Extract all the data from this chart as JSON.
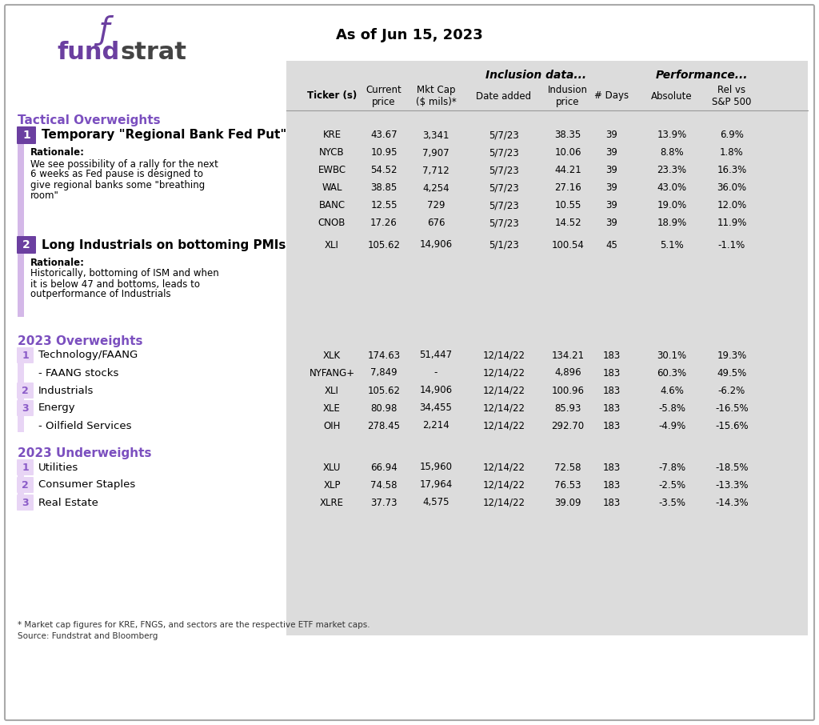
{
  "title": "As of Jun 15, 2023",
  "header_cols": [
    "Ticker (s)",
    "Current\nprice",
    "Mkt Cap\n($ mils)*",
    "Date added",
    "Indusion\nprice",
    "# Days",
    "Absolute",
    "Rel vs\nS&P 500"
  ],
  "group_headers": [
    "Inclusion data...",
    "Performance..."
  ],
  "sections": [
    {
      "type": "tactical_overweights",
      "label": "Tactical Overweights",
      "items": [
        {
          "num": "1",
          "title": "Temporary \"Regional Bank Fed Put\"",
          "rationale": "Rationale:\nWe see possibility of a rally for the next\n6 weeks as Fed pause is designed to\ngive regional banks some \"breathing\nroom\"",
          "rows": [
            [
              "KRE",
              "43.67",
              "3,341",
              "5/7/23",
              "38.35",
              "39",
              "13.9%",
              "6.9%"
            ],
            [
              "NYCB",
              "10.95",
              "7,907",
              "5/7/23",
              "10.06",
              "39",
              "8.8%",
              "1.8%"
            ],
            [
              "EWBC",
              "54.52",
              "7,712",
              "5/7/23",
              "44.21",
              "39",
              "23.3%",
              "16.3%"
            ],
            [
              "WAL",
              "38.85",
              "4,254",
              "5/7/23",
              "27.16",
              "39",
              "43.0%",
              "36.0%"
            ],
            [
              "BANC",
              "12.55",
              "729",
              "5/7/23",
              "10.55",
              "39",
              "19.0%",
              "12.0%"
            ],
            [
              "CNOB",
              "17.26",
              "676",
              "5/7/23",
              "14.52",
              "39",
              "18.9%",
              "11.9%"
            ]
          ]
        },
        {
          "num": "2",
          "title": "Long Industrials on bottoming PMIs",
          "rationale": "Rationale:\nHistorically, bottoming of ISM and when\nit is below 47 and bottoms, leads to\noutperformance of Industrials",
          "rows": [
            [
              "XLI",
              "105.62",
              "14,906",
              "5/1/23",
              "100.54",
              "45",
              "5.1%",
              "-1.1%"
            ]
          ]
        }
      ]
    },
    {
      "type": "overweights_2023",
      "label": "2023 Overweights",
      "items": [
        {
          "num": "1",
          "title": "Technology/FAANG",
          "sub": null,
          "rows": [
            [
              "XLK",
              "174.63",
              "51,447",
              "12/14/22",
              "134.21",
              "183",
              "30.1%",
              "19.3%"
            ]
          ]
        },
        {
          "num": null,
          "title": "- FAANG stocks",
          "sub": true,
          "rows": [
            [
              "NYFANG+",
              "7,849",
              "-",
              "12/14/22",
              "4,896",
              "183",
              "60.3%",
              "49.5%"
            ]
          ]
        },
        {
          "num": "2",
          "title": "Industrials",
          "sub": null,
          "rows": [
            [
              "XLI",
              "105.62",
              "14,906",
              "12/14/22",
              "100.96",
              "183",
              "4.6%",
              "-6.2%"
            ]
          ]
        },
        {
          "num": "3",
          "title": "Energy",
          "sub": null,
          "rows": [
            [
              "XLE",
              "80.98",
              "34,455",
              "12/14/22",
              "85.93",
              "183",
              "-5.8%",
              "-16.5%"
            ]
          ]
        },
        {
          "num": null,
          "title": "- Oilfield Services",
          "sub": true,
          "rows": [
            [
              "OIH",
              "278.45",
              "2,214",
              "12/14/22",
              "292.70",
              "183",
              "-4.9%",
              "-15.6%"
            ]
          ]
        }
      ]
    },
    {
      "type": "underweights_2023",
      "label": "2023 Underweights",
      "items": [
        {
          "num": "1",
          "title": "Utilities",
          "rows": [
            [
              "XLU",
              "66.94",
              "15,960",
              "12/14/22",
              "72.58",
              "183",
              "-7.8%",
              "-18.5%"
            ]
          ]
        },
        {
          "num": "2",
          "title": "Consumer Staples",
          "rows": [
            [
              "XLP",
              "74.58",
              "17,964",
              "12/14/22",
              "76.53",
              "183",
              "-2.5%",
              "-13.3%"
            ]
          ]
        },
        {
          "num": "3",
          "title": "Real Estate",
          "rows": [
            [
              "XLRE",
              "37.73",
              "4,575",
              "12/14/22",
              "39.09",
              "183",
              "-3.5%",
              "-14.3%"
            ]
          ]
        }
      ]
    }
  ],
  "footnote": "* Market cap figures for KRE, FNGS, and sectors are the respective ETF market caps.\nSource: Fundstrat and Bloomberg",
  "colors": {
    "purple_dark": "#6B3FA0",
    "purple_medium": "#8B5CC8",
    "purple_light": "#D4B8E8",
    "purple_lighter": "#E8D5F5",
    "purple_text": "#7B4FBF",
    "gray_bg": "#D8D8D8",
    "gray_light": "#E8E8E8",
    "black": "#000000",
    "white": "#FFFFFF",
    "border": "#CCCCCC"
  }
}
